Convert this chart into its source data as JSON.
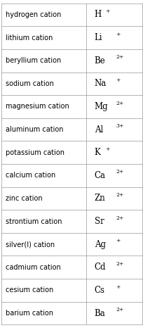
{
  "rows": [
    {
      "name": "hydrogen cation",
      "formula": "H",
      "charge": "+"
    },
    {
      "name": "lithium cation",
      "formula": "Li",
      "charge": "+"
    },
    {
      "name": "beryllium cation",
      "formula": "Be",
      "charge": "2+"
    },
    {
      "name": "sodium cation",
      "formula": "Na",
      "charge": "+"
    },
    {
      "name": "magnesium cation",
      "formula": "Mg",
      "charge": "2+"
    },
    {
      "name": "aluminum cation",
      "formula": "Al",
      "charge": "3+"
    },
    {
      "name": "potassium cation",
      "formula": "K",
      "charge": "+"
    },
    {
      "name": "calcium cation",
      "formula": "Ca",
      "charge": "2+"
    },
    {
      "name": "zinc cation",
      "formula": "Zn",
      "charge": "2+"
    },
    {
      "name": "strontium cation",
      "formula": "Sr",
      "charge": "2+"
    },
    {
      "name": "silver(I) cation",
      "formula": "Ag",
      "charge": "+"
    },
    {
      "name": "cadmium cation",
      "formula": "Cd",
      "charge": "2+"
    },
    {
      "name": "cesium cation",
      "formula": "Cs",
      "charge": "+"
    },
    {
      "name": "barium cation",
      "formula": "Ba",
      "charge": "2+"
    }
  ],
  "bg_color": "#ffffff",
  "border_color": "#999999",
  "text_color": "#000000",
  "col_split": 0.6,
  "name_fontsize": 7.0,
  "formula_fontsize": 8.5,
  "superscript_fontsize": 5.5,
  "superscript_rise": 0.3
}
